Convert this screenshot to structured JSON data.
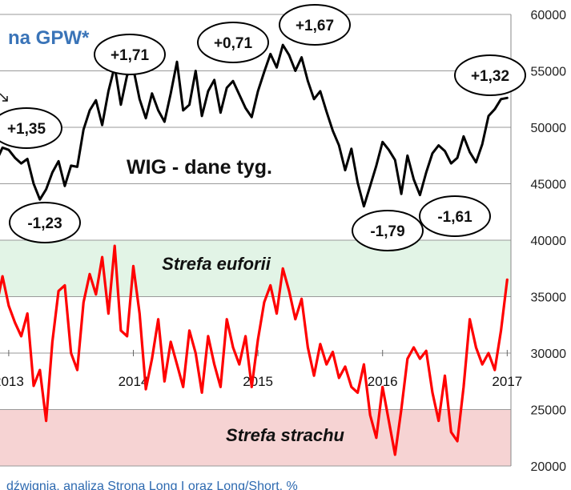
{
  "chart_data": {
    "type": "line",
    "title": "na GPW*",
    "footnote": "dźwignia, analiza Strona Long I oraz Long/Short, %",
    "y_right": {
      "min": 20000,
      "max": 60000,
      "ticks": [
        "20000",
        "25000",
        "30000",
        "35000",
        "40000",
        "45000",
        "50000",
        "55000",
        "60000"
      ]
    },
    "x_ticks": [
      "2013",
      "2014",
      "2015",
      "2016",
      "2017"
    ],
    "zones": [
      {
        "name": "Strefa euforii",
        "from": 35000,
        "to": 40000,
        "color": "#e2f4e6"
      },
      {
        "name": "Strefa strachu",
        "from": 20000,
        "to": 25000,
        "color": "#f6d3d3"
      }
    ],
    "series": [
      {
        "name": "WIG - dane tyg.",
        "color": "#000000",
        "x": [
          2012.8,
          2012.88,
          2012.95,
          2013.0,
          2013.05,
          2013.1,
          2013.15,
          2013.2,
          2013.25,
          2013.3,
          2013.35,
          2013.4,
          2013.45,
          2013.5,
          2013.55,
          2013.6,
          2013.65,
          2013.7,
          2013.75,
          2013.8,
          2013.85,
          2013.9,
          2013.95,
          2014.0,
          2014.05,
          2014.1,
          2014.15,
          2014.2,
          2014.25,
          2014.3,
          2014.35,
          2014.4,
          2014.45,
          2014.5,
          2014.55,
          2014.6,
          2014.65,
          2014.7,
          2014.75,
          2014.8,
          2014.85,
          2014.9,
          2014.95,
          2015.0,
          2015.05,
          2015.1,
          2015.15,
          2015.2,
          2015.25,
          2015.3,
          2015.35,
          2015.4,
          2015.45,
          2015.5,
          2015.55,
          2015.6,
          2015.65,
          2015.7,
          2015.75,
          2015.8,
          2015.85,
          2015.9,
          2015.95,
          2016.0,
          2016.05,
          2016.1,
          2016.15,
          2016.2,
          2016.25,
          2016.3,
          2016.35,
          2016.4,
          2016.45,
          2016.5,
          2016.55,
          2016.6,
          2016.65,
          2016.7,
          2016.75,
          2016.8,
          2016.85,
          2016.9,
          2016.95,
          2017.0
        ],
        "values": [
          47000,
          46500,
          48200,
          48000,
          47300,
          46800,
          47200,
          45000,
          43600,
          44500,
          46000,
          47000,
          44800,
          46600,
          46500,
          49800,
          51500,
          52400,
          50200,
          53200,
          55400,
          52000,
          54600,
          55200,
          52500,
          50800,
          53000,
          51500,
          50500,
          53000,
          55800,
          51500,
          52000,
          55000,
          51000,
          53200,
          54200,
          51300,
          53500,
          54100,
          52900,
          51700,
          50900,
          53200,
          54900,
          56500,
          55300,
          57300,
          56400,
          55000,
          56200,
          54100,
          52500,
          53200,
          51400,
          49700,
          48400,
          46200,
          48100,
          45100,
          43000,
          44800,
          46600,
          48700,
          48000,
          47100,
          44100,
          47500,
          45400,
          44000,
          46000,
          47700,
          48400,
          47900,
          46800,
          47300,
          49200,
          47800,
          46900,
          48500,
          51000,
          51600,
          52500,
          52600
        ]
      },
      {
        "name": "Long/Short",
        "color": "#ff0000",
        "x": [
          2012.8,
          2012.88,
          2012.95,
          2013.0,
          2013.05,
          2013.1,
          2013.15,
          2013.2,
          2013.25,
          2013.3,
          2013.35,
          2013.4,
          2013.45,
          2013.5,
          2013.55,
          2013.6,
          2013.65,
          2013.7,
          2013.75,
          2013.8,
          2013.85,
          2013.9,
          2013.95,
          2014.0,
          2014.05,
          2014.1,
          2014.15,
          2014.2,
          2014.25,
          2014.3,
          2014.35,
          2014.4,
          2014.45,
          2014.5,
          2014.55,
          2014.6,
          2014.65,
          2014.7,
          2014.75,
          2014.8,
          2014.85,
          2014.9,
          2014.95,
          2015.0,
          2015.05,
          2015.1,
          2015.15,
          2015.2,
          2015.25,
          2015.3,
          2015.35,
          2015.4,
          2015.45,
          2015.5,
          2015.55,
          2015.6,
          2015.65,
          2015.7,
          2015.75,
          2015.8,
          2015.85,
          2015.9,
          2015.95,
          2016.0,
          2016.05,
          2016.1,
          2016.15,
          2016.2,
          2016.25,
          2016.3,
          2016.35,
          2016.4,
          2016.45,
          2016.5,
          2016.55,
          2016.6,
          2016.65,
          2016.7,
          2016.75,
          2016.8,
          2016.85,
          2016.9,
          2016.95,
          2017.0
        ],
        "values": [
          34500,
          33000,
          36800,
          34200,
          32700,
          31500,
          33500,
          27100,
          28500,
          24000,
          31000,
          35500,
          36000,
          30000,
          28500,
          34500,
          37000,
          35200,
          38500,
          33500,
          39500,
          32000,
          31500,
          37700,
          33500,
          26800,
          29500,
          33000,
          27500,
          31000,
          29000,
          27000,
          32000,
          30000,
          26500,
          31500,
          29000,
          27000,
          33000,
          30500,
          29000,
          31500,
          27000,
          31200,
          34500,
          36000,
          33500,
          37500,
          35500,
          33000,
          34800,
          30500,
          28000,
          30800,
          29000,
          30100,
          27800,
          28800,
          27000,
          26500,
          29000,
          24500,
          22500,
          27000,
          24000,
          21000,
          25000,
          29500,
          30500,
          29500,
          30200,
          26500,
          24000,
          28000,
          23000,
          22200,
          27000,
          33000,
          30500,
          29000,
          30000,
          28500,
          32000,
          36500
        ]
      }
    ],
    "annotations": [
      {
        "text": "+1,35",
        "series": 0
      },
      {
        "text": "-1,23",
        "series": 0
      },
      {
        "text": "+1,71",
        "series": 0
      },
      {
        "text": "+0,71",
        "series": 0
      },
      {
        "text": "+1,67",
        "series": 0
      },
      {
        "text": "-1,79",
        "series": 0
      },
      {
        "text": "-1,61",
        "series": 0
      },
      {
        "text": "+1,32",
        "series": 0
      }
    ]
  }
}
